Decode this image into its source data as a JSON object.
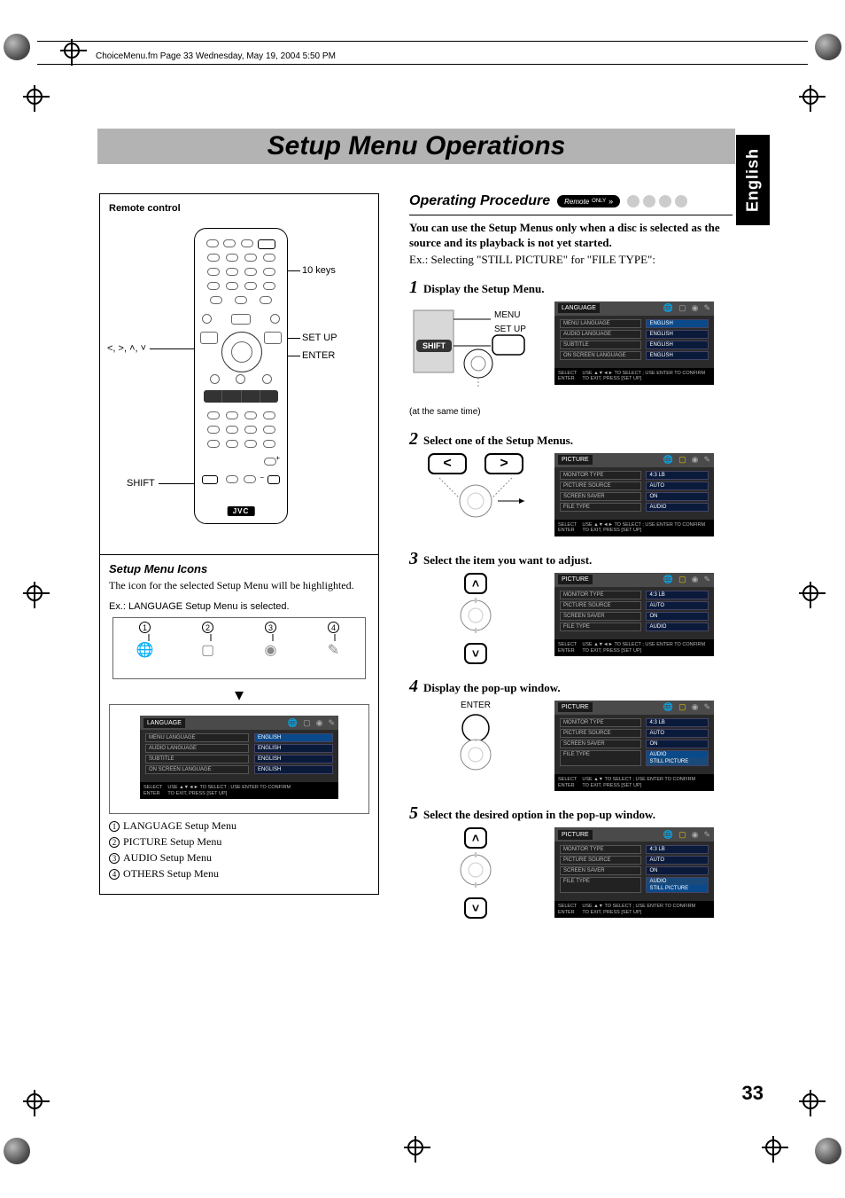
{
  "meta": {
    "header_line": "ChoiceMenu.fm  Page 33  Wednesday, May 19, 2004  5:50 PM",
    "page_number": "33",
    "language_tab": "English",
    "title": "Setup Menu Operations"
  },
  "remote": {
    "heading": "Remote control",
    "brand": "JVC",
    "callouts": {
      "ten_keys": "10 keys",
      "setup": "SET UP",
      "enter": "ENTER",
      "shift": "SHIFT",
      "arrows": "<, >, ˄, ˅"
    }
  },
  "icons_section": {
    "heading": "Setup Menu Icons",
    "body": "The icon for the selected Setup Menu will be highlighted.",
    "example": "Ex.: LANGUAGE Setup Menu is selected.",
    "numbers": [
      "1",
      "2",
      "3",
      "4"
    ],
    "legend": [
      "LANGUAGE Setup Menu",
      "PICTURE Setup Menu",
      "AUDIO Setup Menu",
      "OTHERS Setup Menu"
    ]
  },
  "osd_language": {
    "tab": "LANGUAGE",
    "icons": [
      "globe",
      "monitor",
      "speaker",
      "wand"
    ],
    "highlight_icon": 0,
    "rows": [
      {
        "l": "MENU LANGUAGE",
        "r": "ENGLISH",
        "hl": true
      },
      {
        "l": "AUDIO LANGUAGE",
        "r": "ENGLISH"
      },
      {
        "l": "SUBTITLE",
        "r": "ENGLISH"
      },
      {
        "l": "ON SCREEN LANGUAGE",
        "r": "ENGLISH"
      }
    ],
    "footer_l": "SELECT\nENTER",
    "footer_r": "USE ▲▼◄► TO SELECT ; USE ENTER TO CONFIRM\nTO EXIT, PRESS [SET UP]"
  },
  "osd_picture": {
    "tab": "PICTURE",
    "highlight_icon": 1,
    "rows": [
      {
        "l": "MONITOR TYPE",
        "r": "4:3 LB"
      },
      {
        "l": "PICTURE SOURCE",
        "r": "AUTO"
      },
      {
        "l": "SCREEN SAVER",
        "r": "ON"
      },
      {
        "l": "FILE TYPE",
        "r": "AUDIO"
      }
    ],
    "footer_l": "SELECT\nENTER",
    "footer_r": "USE ▲▼◄► TO SELECT ; USE ENTER TO CONFIRM\nTO EXIT, PRESS [SET UP]"
  },
  "osd_picture_filetype_popup": {
    "tab": "PICTURE",
    "highlight_icon": 1,
    "rows": [
      {
        "l": "MONITOR TYPE",
        "r": "4:3 LB"
      },
      {
        "l": "PICTURE SOURCE",
        "r": "AUTO"
      },
      {
        "l": "SCREEN SAVER",
        "r": "ON"
      },
      {
        "l": "FILE TYPE",
        "r": "",
        "drop": [
          "AUDIO",
          "STILL PICTURE"
        ],
        "drop_hl": 0
      }
    ],
    "footer_l": "SELECT\nENTER",
    "footer_r": "USE ▲▼ TO SELECT ; USE ENTER TO CONFIRM\nTO EXIT, PRESS [SET UP]"
  },
  "osd_picture_filetype_popup2": {
    "tab": "PICTURE",
    "highlight_icon": 1,
    "rows": [
      {
        "l": "MONITOR TYPE",
        "r": "4:3 LB"
      },
      {
        "l": "PICTURE SOURCE",
        "r": "AUTO"
      },
      {
        "l": "SCREEN SAVER",
        "r": "ON"
      },
      {
        "l": "FILE TYPE",
        "r": "",
        "drop": [
          "AUDIO",
          "STILL PICTURE"
        ],
        "drop_hl": 1
      }
    ],
    "footer_l": "SELECT\nENTER",
    "footer_r": "USE ▲▼ TO SELECT ; USE ENTER TO CONFIRM\nTO EXIT, PRESS [SET UP]"
  },
  "procedure": {
    "heading": "Operating Procedure",
    "pill_main": "Remote",
    "pill_sub": "ONLY",
    "intro_bold": "You can use the Setup Menus only when a disc is selected as the source and its playback is not yet started.",
    "intro_ex": "Ex.: Selecting \"STILL PICTURE\" for \"FILE TYPE\":",
    "steps": [
      {
        "n": "1",
        "t": "Display the Setup Menu.",
        "labels": {
          "menu": "MENU",
          "setup": "SET UP",
          "shift": "SHIFT",
          "caption": "(at the same time)"
        }
      },
      {
        "n": "2",
        "t": "Select one of the Setup Menus."
      },
      {
        "n": "3",
        "t": "Select the item you want to adjust."
      },
      {
        "n": "4",
        "t": "Display the pop-up window.",
        "labels": {
          "enter": "ENTER"
        }
      },
      {
        "n": "5",
        "t": "Select the desired option in the pop-up window."
      }
    ]
  },
  "colors": {
    "title_bar_bg": "#b3b3b3",
    "osd_bg": "#2a2a2a",
    "osd_cell_r": "#0a1a3a",
    "osd_cell_r_hl": "#0a4a8a"
  }
}
